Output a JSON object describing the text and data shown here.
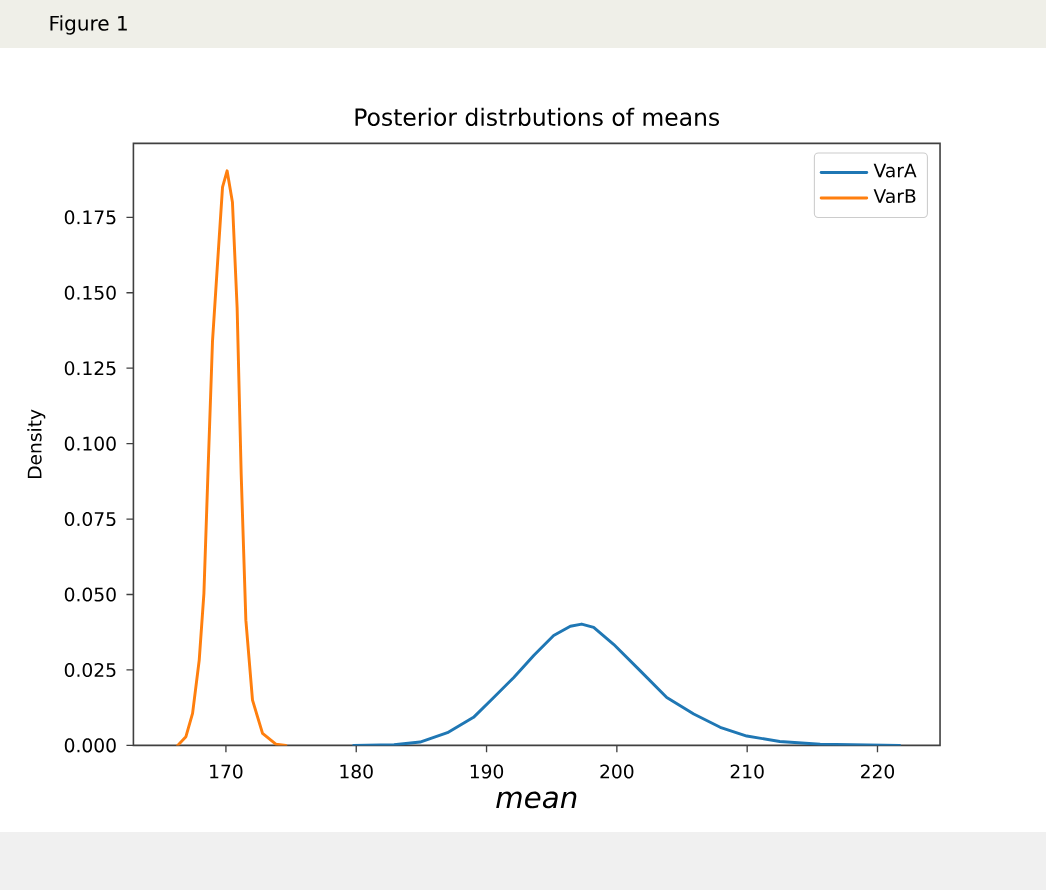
{
  "chart_data": {
    "type": "line",
    "title": "Posterior distrbutions of means",
    "xlabel": "mean",
    "ylabel": "Density",
    "annotations": [
      "Figure 1"
    ],
    "xlim": [
      162.9,
      224.8
    ],
    "ylim": [
      0,
      0.1995
    ],
    "xticks": [
      170,
      180,
      190,
      200,
      210,
      220
    ],
    "yticks": [
      {
        "value": 0,
        "label": "0.000"
      },
      0.025,
      {
        "value": 0.05,
        "label": "0.050"
      },
      0.075,
      {
        "value": 0.1,
        "label": "0.100"
      },
      0.125,
      {
        "value": 0.15,
        "label": "0.150"
      },
      0.175
    ],
    "legend": "top right",
    "series": [
      {
        "name": "VarA",
        "color": "#1f77b4",
        "x": [
          179.8,
          182.9,
          184.9,
          187.0,
          189.0,
          190.55,
          192.09,
          193.62,
          195.15,
          196.43,
          197.3,
          198.22,
          199.75,
          201.8,
          203.83,
          205.9,
          207.93,
          209.97,
          212.5,
          215.6,
          221.7
        ],
        "values": [
          0,
          0.0002,
          0.0011,
          0.0042,
          0.0093,
          0.0159,
          0.0225,
          0.0298,
          0.0364,
          0.0395,
          0.0402,
          0.0391,
          0.0335,
          0.0247,
          0.0159,
          0.0104,
          0.006,
          0.0031,
          0.0013,
          0.0004,
          0
        ]
      },
      {
        "name": "VarB",
        "color": "#ff7f0e",
        "x": [
          166.3,
          166.93,
          167.44,
          167.95,
          168.31,
          168.62,
          168.97,
          169.33,
          169.74,
          170.09,
          170.5,
          170.86,
          171.17,
          171.53,
          172.04,
          172.81,
          173.83,
          174.6
        ],
        "values": [
          0,
          0.0029,
          0.0106,
          0.0282,
          0.0503,
          0.09,
          0.134,
          0.158,
          0.185,
          0.1904,
          0.18,
          0.145,
          0.09,
          0.0415,
          0.015,
          0.004,
          0.0004,
          0
        ]
      }
    ]
  }
}
